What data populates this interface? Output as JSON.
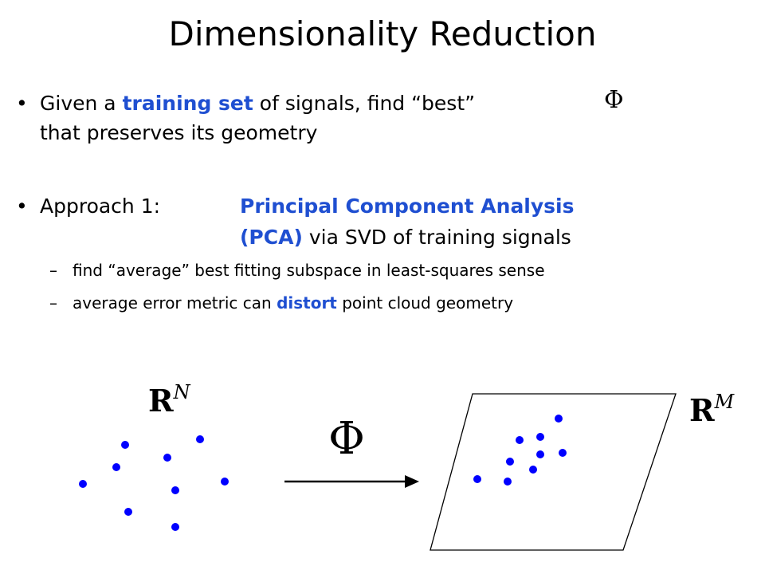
{
  "title": "Dimensionality Reduction",
  "bullet_glyph": "•",
  "b1": {
    "t1": "Given a ",
    "t2": "training set",
    "t3": " of signals, find “best” ",
    "phi": "Φ",
    "line2": "that preserves its geometry"
  },
  "b2": {
    "label": "Approach 1:",
    "h1": "Principal Component Analysis",
    "h2": "(PCA)",
    "t": " via SVD of training signals"
  },
  "subs": {
    "dash": "–",
    "s1": "find “average” best fitting subspace in least-squares sense",
    "s2a": "average error metric can ",
    "s2b": "distort",
    "s2c": " point cloud geometry"
  },
  "figure": {
    "left_space_base": "R",
    "left_space_sup": "N",
    "map_symbol": "Φ",
    "right_space_base": "R",
    "right_space_sup": "M",
    "dot_color": "#0000ff"
  }
}
